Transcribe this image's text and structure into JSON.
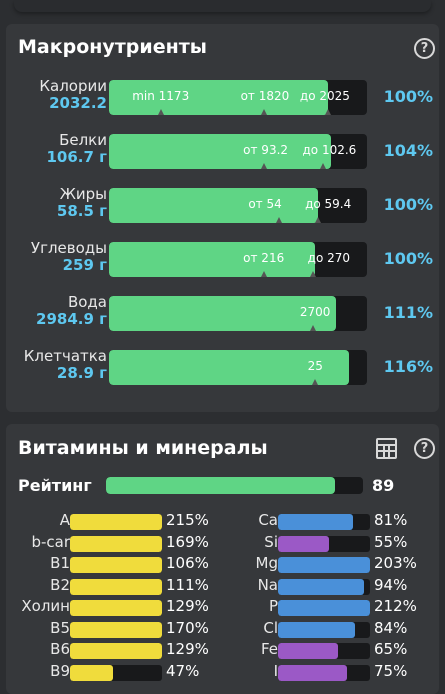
{
  "colors": {
    "background": "#2c2e31",
    "card": "#36383b",
    "green": "#5fd585",
    "blue_text": "#5ec8f0",
    "yellow": "#f0dc3c",
    "mineral_blue": "#4a90d9",
    "purple": "#9b59c6",
    "track": "#18191b"
  },
  "macros": {
    "title": "Макронутриенты",
    "help_icon": "question-circle-icon",
    "rows": [
      {
        "name": "Калории",
        "value": "2032.2",
        "pct": "100%",
        "fill": 0.85,
        "marks": [
          {
            "text": "min 1173",
            "at": 0.09
          },
          {
            "text": "от 1820",
            "at": 0.51
          },
          {
            "text": "до 2025",
            "at": 0.74
          }
        ],
        "ticks": [
          0.2,
          0.6,
          0.85
        ]
      },
      {
        "name": "Белки",
        "value": "106.7 г",
        "pct": "104%",
        "fill": 0.86,
        "marks": [
          {
            "text": "от 93.2",
            "at": 0.52
          },
          {
            "text": "до 102.6",
            "at": 0.75
          }
        ],
        "ticks": [
          0.6,
          0.83
        ]
      },
      {
        "name": "Жиры",
        "value": "58.5 г",
        "pct": "100%",
        "fill": 0.81,
        "marks": [
          {
            "text": "от 54",
            "at": 0.54
          },
          {
            "text": "до 59.4",
            "at": 0.76
          }
        ],
        "ticks": [
          0.66,
          0.81
        ]
      },
      {
        "name": "Углеводы",
        "value": "259 г",
        "pct": "100%",
        "fill": 0.8,
        "marks": [
          {
            "text": "от 216",
            "at": 0.52
          },
          {
            "text": "до 270",
            "at": 0.77
          }
        ],
        "ticks": [
          0.6,
          0.79
        ]
      },
      {
        "name": "Вода",
        "value": "2984.9 г",
        "pct": "111%",
        "fill": 0.88,
        "marks": [
          {
            "text": "2700",
            "at": 0.74
          }
        ],
        "ticks": [
          0.79
        ]
      },
      {
        "name": "Клетчатка",
        "value": "28.9 г",
        "pct": "116%",
        "fill": 0.93,
        "marks": [
          {
            "text": "25",
            "at": 0.77
          }
        ],
        "ticks": [
          0.8
        ]
      }
    ]
  },
  "vitamins": {
    "title": "Витамины и минералы",
    "table_icon": "table-icon",
    "help_icon": "question-circle-icon",
    "rating_label": "Рейтинг",
    "rating_value": "89",
    "rating_fill": 0.89,
    "left": [
      {
        "name": "A",
        "pct": "215%",
        "fill": 1.0,
        "color": "#f0dc3c"
      },
      {
        "name": "b-car",
        "pct": "169%",
        "fill": 1.0,
        "color": "#f0dc3c"
      },
      {
        "name": "B1",
        "pct": "106%",
        "fill": 1.0,
        "color": "#f0dc3c"
      },
      {
        "name": "B2",
        "pct": "111%",
        "fill": 1.0,
        "color": "#f0dc3c"
      },
      {
        "name": "Холин",
        "pct": "129%",
        "fill": 1.0,
        "color": "#f0dc3c"
      },
      {
        "name": "B5",
        "pct": "170%",
        "fill": 1.0,
        "color": "#f0dc3c"
      },
      {
        "name": "B6",
        "pct": "129%",
        "fill": 1.0,
        "color": "#f0dc3c"
      },
      {
        "name": "B9",
        "pct": "47%",
        "fill": 0.47,
        "color": "#f0dc3c"
      }
    ],
    "right": [
      {
        "name": "Ca",
        "pct": "81%",
        "fill": 0.81,
        "color": "#4a90d9"
      },
      {
        "name": "Si",
        "pct": "55%",
        "fill": 0.55,
        "color": "#9b59c6"
      },
      {
        "name": "Mg",
        "pct": "203%",
        "fill": 1.0,
        "color": "#4a90d9"
      },
      {
        "name": "Na",
        "pct": "94%",
        "fill": 0.94,
        "color": "#4a90d9"
      },
      {
        "name": "P",
        "pct": "212%",
        "fill": 1.0,
        "color": "#4a90d9"
      },
      {
        "name": "Cl",
        "pct": "84%",
        "fill": 0.84,
        "color": "#4a90d9"
      },
      {
        "name": "Fe",
        "pct": "65%",
        "fill": 0.65,
        "color": "#9b59c6"
      },
      {
        "name": "I",
        "pct": "75%",
        "fill": 0.75,
        "color": "#9b59c6"
      }
    ]
  }
}
